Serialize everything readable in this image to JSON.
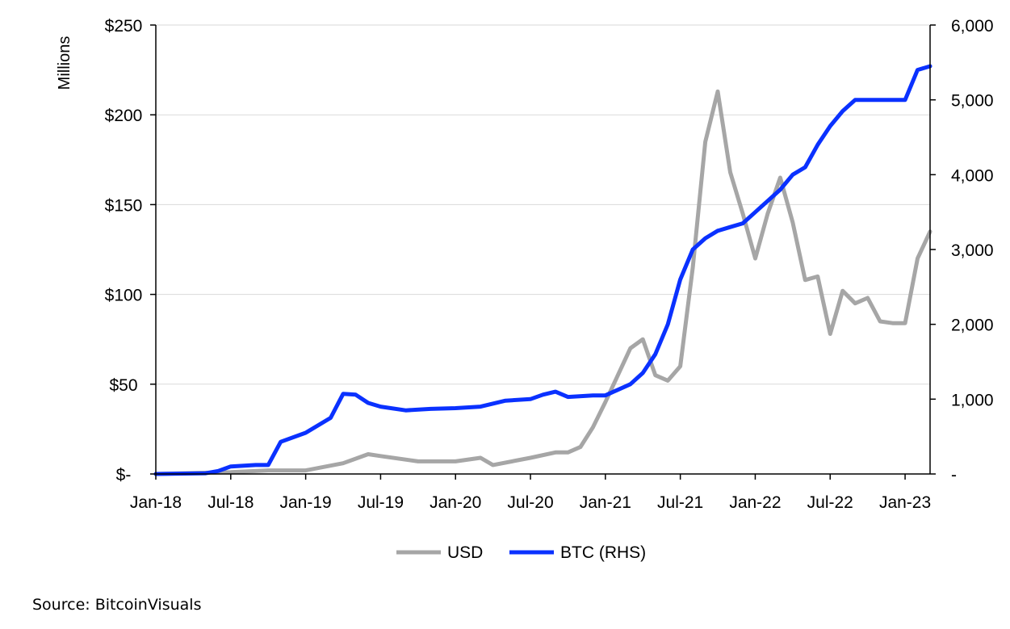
{
  "chart_data": {
    "type": "line",
    "title": "",
    "ylabel": "Millions",
    "source": "Source: BitcoinVisuals",
    "x_ticks": [
      "Jan-18",
      "Jul-18",
      "Jan-19",
      "Jul-19",
      "Jan-20",
      "Jul-20",
      "Jan-21",
      "Jul-21",
      "Jan-22",
      "Jul-22",
      "Jan-23"
    ],
    "x_range": [
      "2018-01",
      "2023-03"
    ],
    "y_left": {
      "ylim": [
        0,
        250
      ],
      "ticks": [
        "$-",
        "$50",
        "$100",
        "$150",
        "$200",
        "$250"
      ],
      "unit": "USD millions"
    },
    "y_right": {
      "ylim": [
        0,
        6000
      ],
      "ticks": [
        "-",
        "1,000",
        "2,000",
        "3,000",
        "4,000",
        "5,000",
        "6,000"
      ],
      "unit": "BTC"
    },
    "grid": "horizontal",
    "legend_position": "bottom",
    "series": [
      {
        "name": "USD",
        "axis": "left",
        "color": "#a6a6a6",
        "x": [
          "2018-01",
          "2018-04",
          "2018-07",
          "2018-10",
          "2019-01",
          "2019-04",
          "2019-06",
          "2019-07",
          "2019-10",
          "2020-01",
          "2020-03",
          "2020-04",
          "2020-07",
          "2020-09",
          "2020-10",
          "2020-11",
          "2020-12",
          "2021-01",
          "2021-02",
          "2021-03",
          "2021-04",
          "2021-05",
          "2021-06",
          "2021-07",
          "2021-08",
          "2021-09",
          "2021-10",
          "2021-11",
          "2021-12",
          "2022-01",
          "2022-02",
          "2022-03",
          "2022-04",
          "2022-05",
          "2022-06",
          "2022-07",
          "2022-08",
          "2022-09",
          "2022-10",
          "2022-11",
          "2022-12",
          "2023-01",
          "2023-02",
          "2023-03"
        ],
        "values": [
          0,
          0.5,
          1,
          2,
          2,
          6,
          11,
          10,
          7,
          7,
          9,
          5,
          9,
          12,
          12,
          15,
          26,
          40,
          55,
          70,
          75,
          55,
          52,
          60,
          115,
          185,
          213,
          168,
          145,
          120,
          145,
          165,
          140,
          108,
          110,
          78,
          102,
          95,
          98,
          85,
          84,
          84,
          120,
          135
        ]
      },
      {
        "name": "BTC (RHS)",
        "axis": "right",
        "color": "#0a31ff",
        "x": [
          "2018-01",
          "2018-05",
          "2018-06",
          "2018-07",
          "2018-09",
          "2018-10",
          "2018-11",
          "2019-01",
          "2019-03",
          "2019-04",
          "2019-05",
          "2019-06",
          "2019-07",
          "2019-09",
          "2019-11",
          "2020-01",
          "2020-03",
          "2020-05",
          "2020-07",
          "2020-08",
          "2020-09",
          "2020-10",
          "2020-12",
          "2021-01",
          "2021-03",
          "2021-04",
          "2021-05",
          "2021-06",
          "2021-07",
          "2021-08",
          "2021-09",
          "2021-10",
          "2021-11",
          "2021-12",
          "2022-01",
          "2022-02",
          "2022-03",
          "2022-04",
          "2022-05",
          "2022-06",
          "2022-07",
          "2022-08",
          "2022-09",
          "2022-10",
          "2022-11",
          "2022-12",
          "2023-01",
          "2023-02",
          "2023-03"
        ],
        "values": [
          0,
          10,
          40,
          100,
          120,
          120,
          430,
          550,
          750,
          1070,
          1060,
          950,
          900,
          850,
          870,
          880,
          900,
          980,
          1000,
          1060,
          1100,
          1030,
          1050,
          1050,
          1200,
          1350,
          1600,
          2000,
          2600,
          3000,
          3150,
          3250,
          3300,
          3350,
          3500,
          3650,
          3800,
          4000,
          4100,
          4400,
          4650,
          4850,
          5000,
          5000,
          5000,
          5000,
          5000,
          5400,
          5450
        ]
      }
    ]
  }
}
